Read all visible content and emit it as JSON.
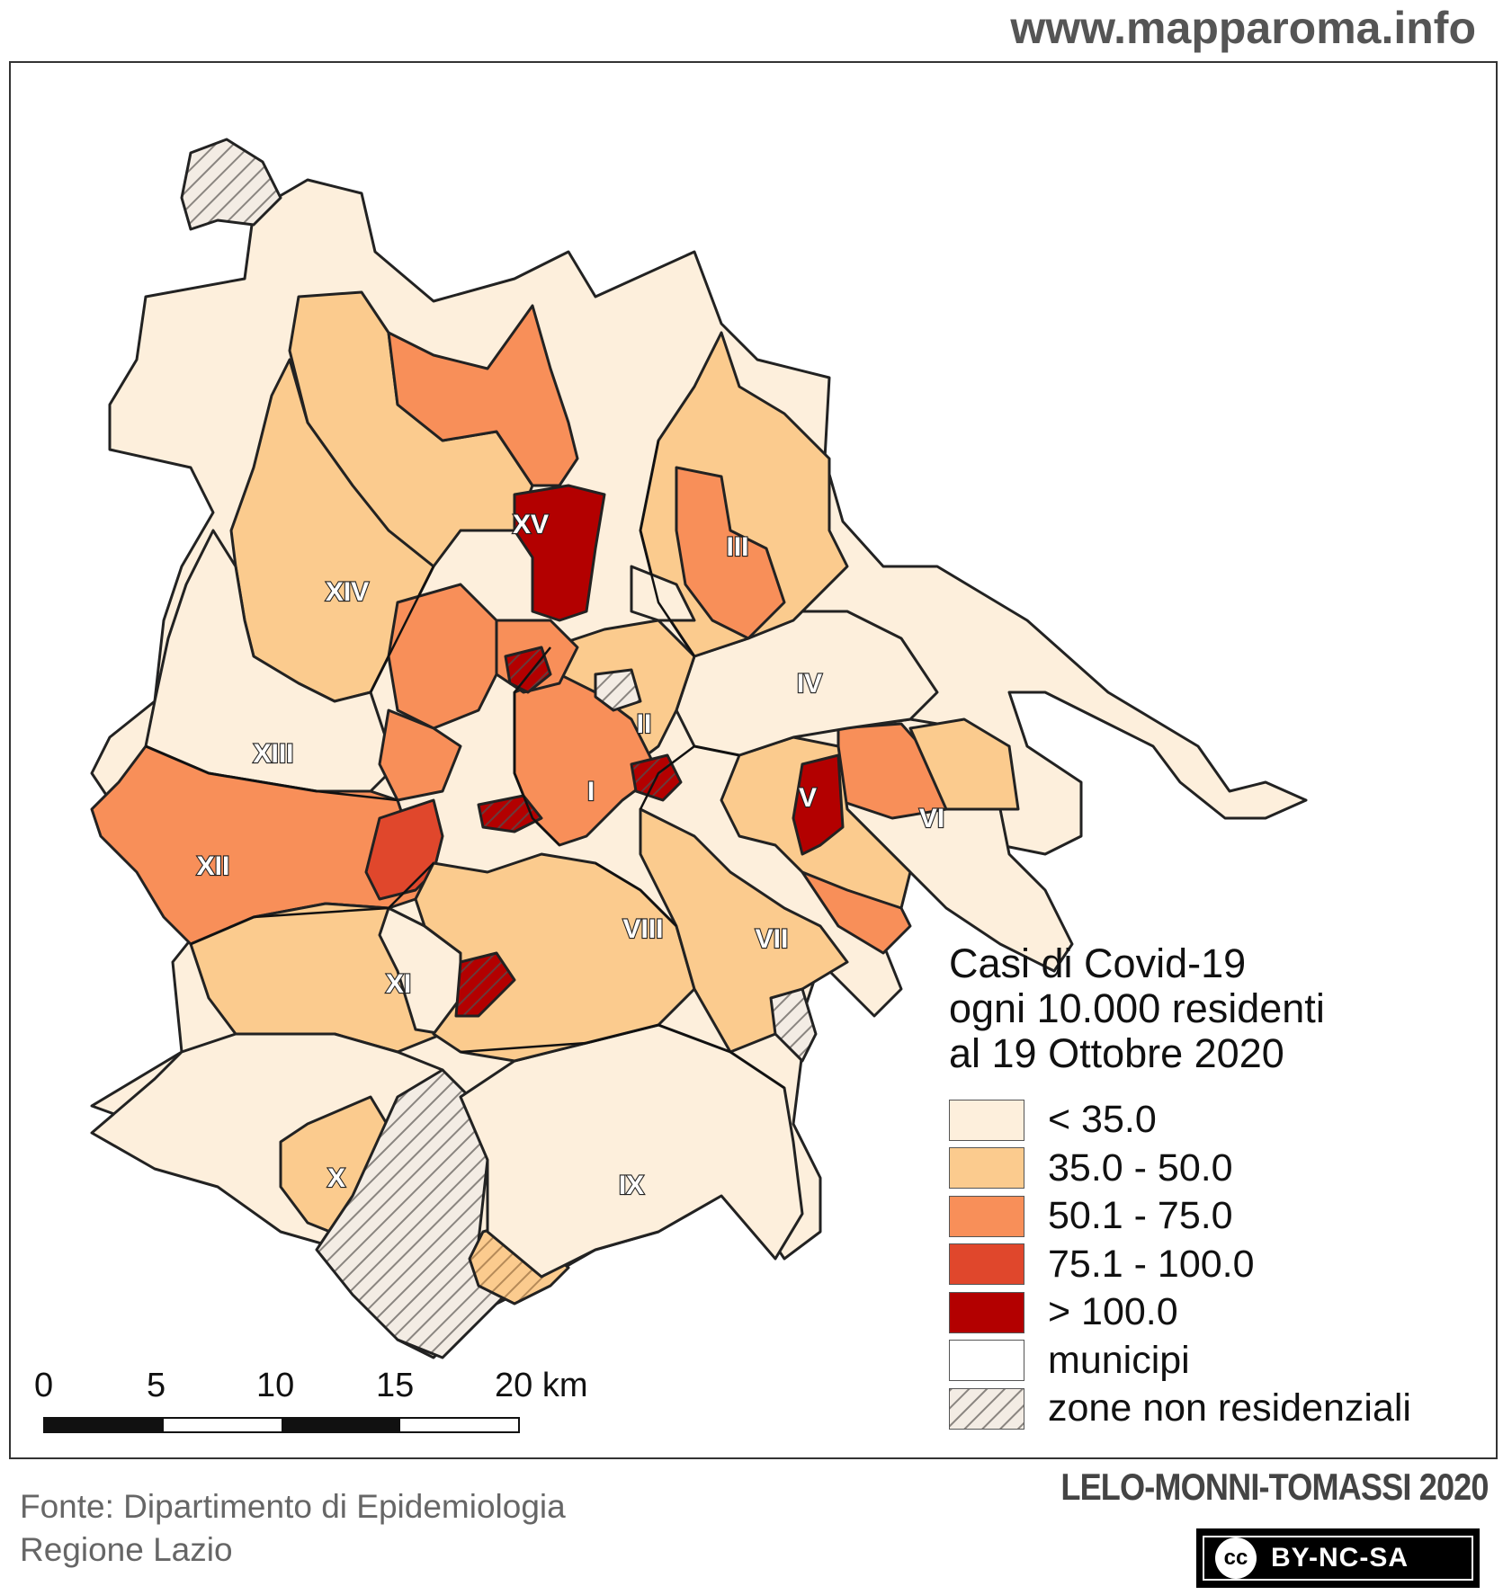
{
  "header": {
    "site": "www.mapparoma.info"
  },
  "legend": {
    "title_lines": [
      "Casi di Covid-19",
      "ogni 10.000 residenti",
      "al 19 Ottobre 2020"
    ],
    "items": [
      {
        "label": "< 35.0",
        "color": "#fdefdc",
        "pattern": "solid"
      },
      {
        "label": "35.0 - 50.0",
        "color": "#fbcb8e",
        "pattern": "solid"
      },
      {
        "label": "50.1 - 75.0",
        "color": "#f88f59",
        "pattern": "solid"
      },
      {
        "label": "75.1 - 100.0",
        "color": "#e0472c",
        "pattern": "solid"
      },
      {
        "label": "> 100.0",
        "color": "#b30000",
        "pattern": "solid"
      },
      {
        "label": "municipi",
        "color": "#ffffff",
        "pattern": "outline"
      },
      {
        "label": "zone non residenziali",
        "color": "#f3ece4",
        "pattern": "hatched"
      }
    ]
  },
  "municipi": [
    "I",
    "II",
    "III",
    "IV",
    "V",
    "VI",
    "VII",
    "VIII",
    "IX",
    "X",
    "XI",
    "XII",
    "XIII",
    "XIV",
    "XV"
  ],
  "scalebar": {
    "ticks": [
      "0",
      "5",
      "10",
      "15",
      "20 km"
    ]
  },
  "source": {
    "line1": "Fonte: Dipartimento di Epidemiologia",
    "line2": "Regione Lazio"
  },
  "credit": "LELO-MONNI-TOMASSI 2020",
  "license": {
    "cc": "cc",
    "text": "BY-NC-SA"
  }
}
